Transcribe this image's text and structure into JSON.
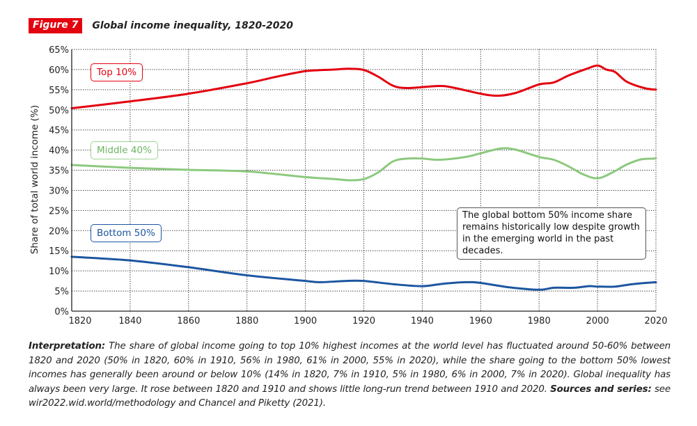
{
  "header": {
    "badge": "Figure 7",
    "title": "Global income inequality, 1820-2020"
  },
  "annotation": "The global bottom 50% income share remains historically low despite growth in the emerging world in the past decades.",
  "caption": {
    "interpretation_label": "Interpretation:",
    "interpretation_text": " The share of global income going to top 10% highest incomes at the world level has fluctuated around 50-60% between 1820 and 2020 (50% in 1820, 60% in 1910, 56% in 1980, 61% in 2000, 55% in 2020), while the share going to the bottom 50% lowest incomes has generally been around or below 10% (14% in 1820, 7% in 1910, 5% in 1980, 6% in 2000, 7% in 2020). Global inequality has always been very large. It rose between 1820 and 1910 and shows little long-run trend between 1910 and 2020. ",
    "sources_label": "Sources and series:",
    "sources_text": " see wir2022.wid.world/methodology and Chancel and Piketty (2021)."
  },
  "chart_data": {
    "type": "line",
    "title": "Global income inequality, 1820-2020",
    "xlabel": "",
    "ylabel": "Share of total world income (%)",
    "xlim": [
      1820,
      2020
    ],
    "ylim": [
      0,
      65
    ],
    "x_ticks": [
      1820,
      1840,
      1860,
      1880,
      1900,
      1920,
      1940,
      1960,
      1980,
      2000,
      2020
    ],
    "y_ticks": [
      0,
      5,
      10,
      15,
      20,
      25,
      30,
      35,
      40,
      45,
      50,
      55,
      60,
      65
    ],
    "y_tick_labels": [
      "0%",
      "5%",
      "10%",
      "15%",
      "20%",
      "25%",
      "30%",
      "35%",
      "40%",
      "45%",
      "50%",
      "55%",
      "60%",
      "65%"
    ],
    "grid": true,
    "legend": "inline-labels",
    "series": [
      {
        "name": "Top 10%",
        "color": "#e3000f",
        "points": [
          [
            1820,
            50.4
          ],
          [
            1840,
            52.1
          ],
          [
            1860,
            54.0
          ],
          [
            1880,
            56.6
          ],
          [
            1890,
            58.2
          ],
          [
            1900,
            59.6
          ],
          [
            1910,
            60.0
          ],
          [
            1915,
            60.2
          ],
          [
            1920,
            59.9
          ],
          [
            1925,
            58.2
          ],
          [
            1930,
            56.0
          ],
          [
            1935,
            55.4
          ],
          [
            1945,
            55.9
          ],
          [
            1950,
            55.6
          ],
          [
            1960,
            54.0
          ],
          [
            1966,
            53.5
          ],
          [
            1972,
            54.2
          ],
          [
            1980,
            56.3
          ],
          [
            1985,
            56.8
          ],
          [
            1990,
            58.5
          ],
          [
            1996,
            60.1
          ],
          [
            2000,
            61.0
          ],
          [
            2003,
            60.0
          ],
          [
            2006,
            59.4
          ],
          [
            2010,
            57.0
          ],
          [
            2016,
            55.4
          ],
          [
            2020,
            55.0
          ]
        ]
      },
      {
        "name": "Middle 40%",
        "color": "#8cc97e",
        "points": [
          [
            1820,
            36.3
          ],
          [
            1840,
            35.6
          ],
          [
            1860,
            35.1
          ],
          [
            1880,
            34.7
          ],
          [
            1900,
            33.3
          ],
          [
            1910,
            32.8
          ],
          [
            1915,
            32.5
          ],
          [
            1920,
            32.8
          ],
          [
            1925,
            34.5
          ],
          [
            1930,
            37.2
          ],
          [
            1935,
            37.9
          ],
          [
            1940,
            37.9
          ],
          [
            1946,
            37.6
          ],
          [
            1955,
            38.3
          ],
          [
            1960,
            39.2
          ],
          [
            1967,
            40.4
          ],
          [
            1972,
            40.1
          ],
          [
            1980,
            38.3
          ],
          [
            1985,
            37.6
          ],
          [
            1990,
            36.0
          ],
          [
            1995,
            34.0
          ],
          [
            2000,
            33.0
          ],
          [
            2005,
            34.4
          ],
          [
            2010,
            36.4
          ],
          [
            2015,
            37.7
          ],
          [
            2020,
            37.9
          ]
        ]
      },
      {
        "name": "Bottom 50%",
        "color": "#1c56a0",
        "points": [
          [
            1820,
            13.5
          ],
          [
            1840,
            12.6
          ],
          [
            1860,
            10.9
          ],
          [
            1880,
            8.9
          ],
          [
            1900,
            7.5
          ],
          [
            1905,
            7.2
          ],
          [
            1914,
            7.5
          ],
          [
            1920,
            7.5
          ],
          [
            1930,
            6.7
          ],
          [
            1940,
            6.2
          ],
          [
            1947,
            6.8
          ],
          [
            1955,
            7.2
          ],
          [
            1960,
            7.0
          ],
          [
            1970,
            5.9
          ],
          [
            1980,
            5.3
          ],
          [
            1985,
            5.8
          ],
          [
            1992,
            5.8
          ],
          [
            1997,
            6.2
          ],
          [
            2000,
            6.1
          ],
          [
            2006,
            6.1
          ],
          [
            2012,
            6.7
          ],
          [
            2020,
            7.2
          ]
        ]
      }
    ]
  }
}
